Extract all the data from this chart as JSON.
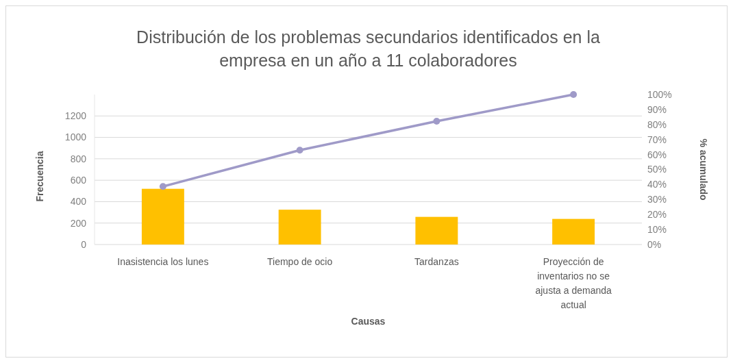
{
  "chart_data": {
    "type": "bar",
    "title": "Distribución de los problemas secundarios identificados en la empresa en un año a 11 colaboradores",
    "xlabel": "Causas",
    "ylabel": "Frecuencia",
    "y2label": "% acumulado",
    "categories": [
      "Inasistencia los lunes",
      "Tiempo de ocio",
      "Tardanzas",
      "Proyección de inventarios no se ajusta a demanda actual"
    ],
    "series": [
      {
        "color": "#ffc000",
        "values": [
          520,
          325,
          258,
          239
        ]
      },
      {
        "type": "line",
        "axis": "y2",
        "color": "#9f9ac8",
        "values": [
          38.7,
          62.9,
          82.2,
          100
        ]
      }
    ],
    "ylim": [
      0,
      1400
    ],
    "yticks": [
      0,
      200,
      400,
      600,
      800,
      1000,
      1200
    ],
    "y2lim": [
      0,
      100
    ],
    "y2ticks": [
      {
        "value": 0,
        "label": "0%"
      },
      {
        "value": 10,
        "label": "10%"
      },
      {
        "value": 20,
        "label": "20%"
      },
      {
        "value": 30,
        "label": "30%"
      },
      {
        "value": 40,
        "label": "40%"
      },
      {
        "value": 50,
        "label": "50%"
      },
      {
        "value": 60,
        "label": "60%"
      },
      {
        "value": 70,
        "label": "70%"
      },
      {
        "value": 80,
        "label": "80%"
      },
      {
        "value": 90,
        "label": "90%"
      },
      {
        "value": 100,
        "label": "100%"
      }
    ],
    "grid": "y",
    "marker": "circle",
    "line_style": "solid"
  }
}
